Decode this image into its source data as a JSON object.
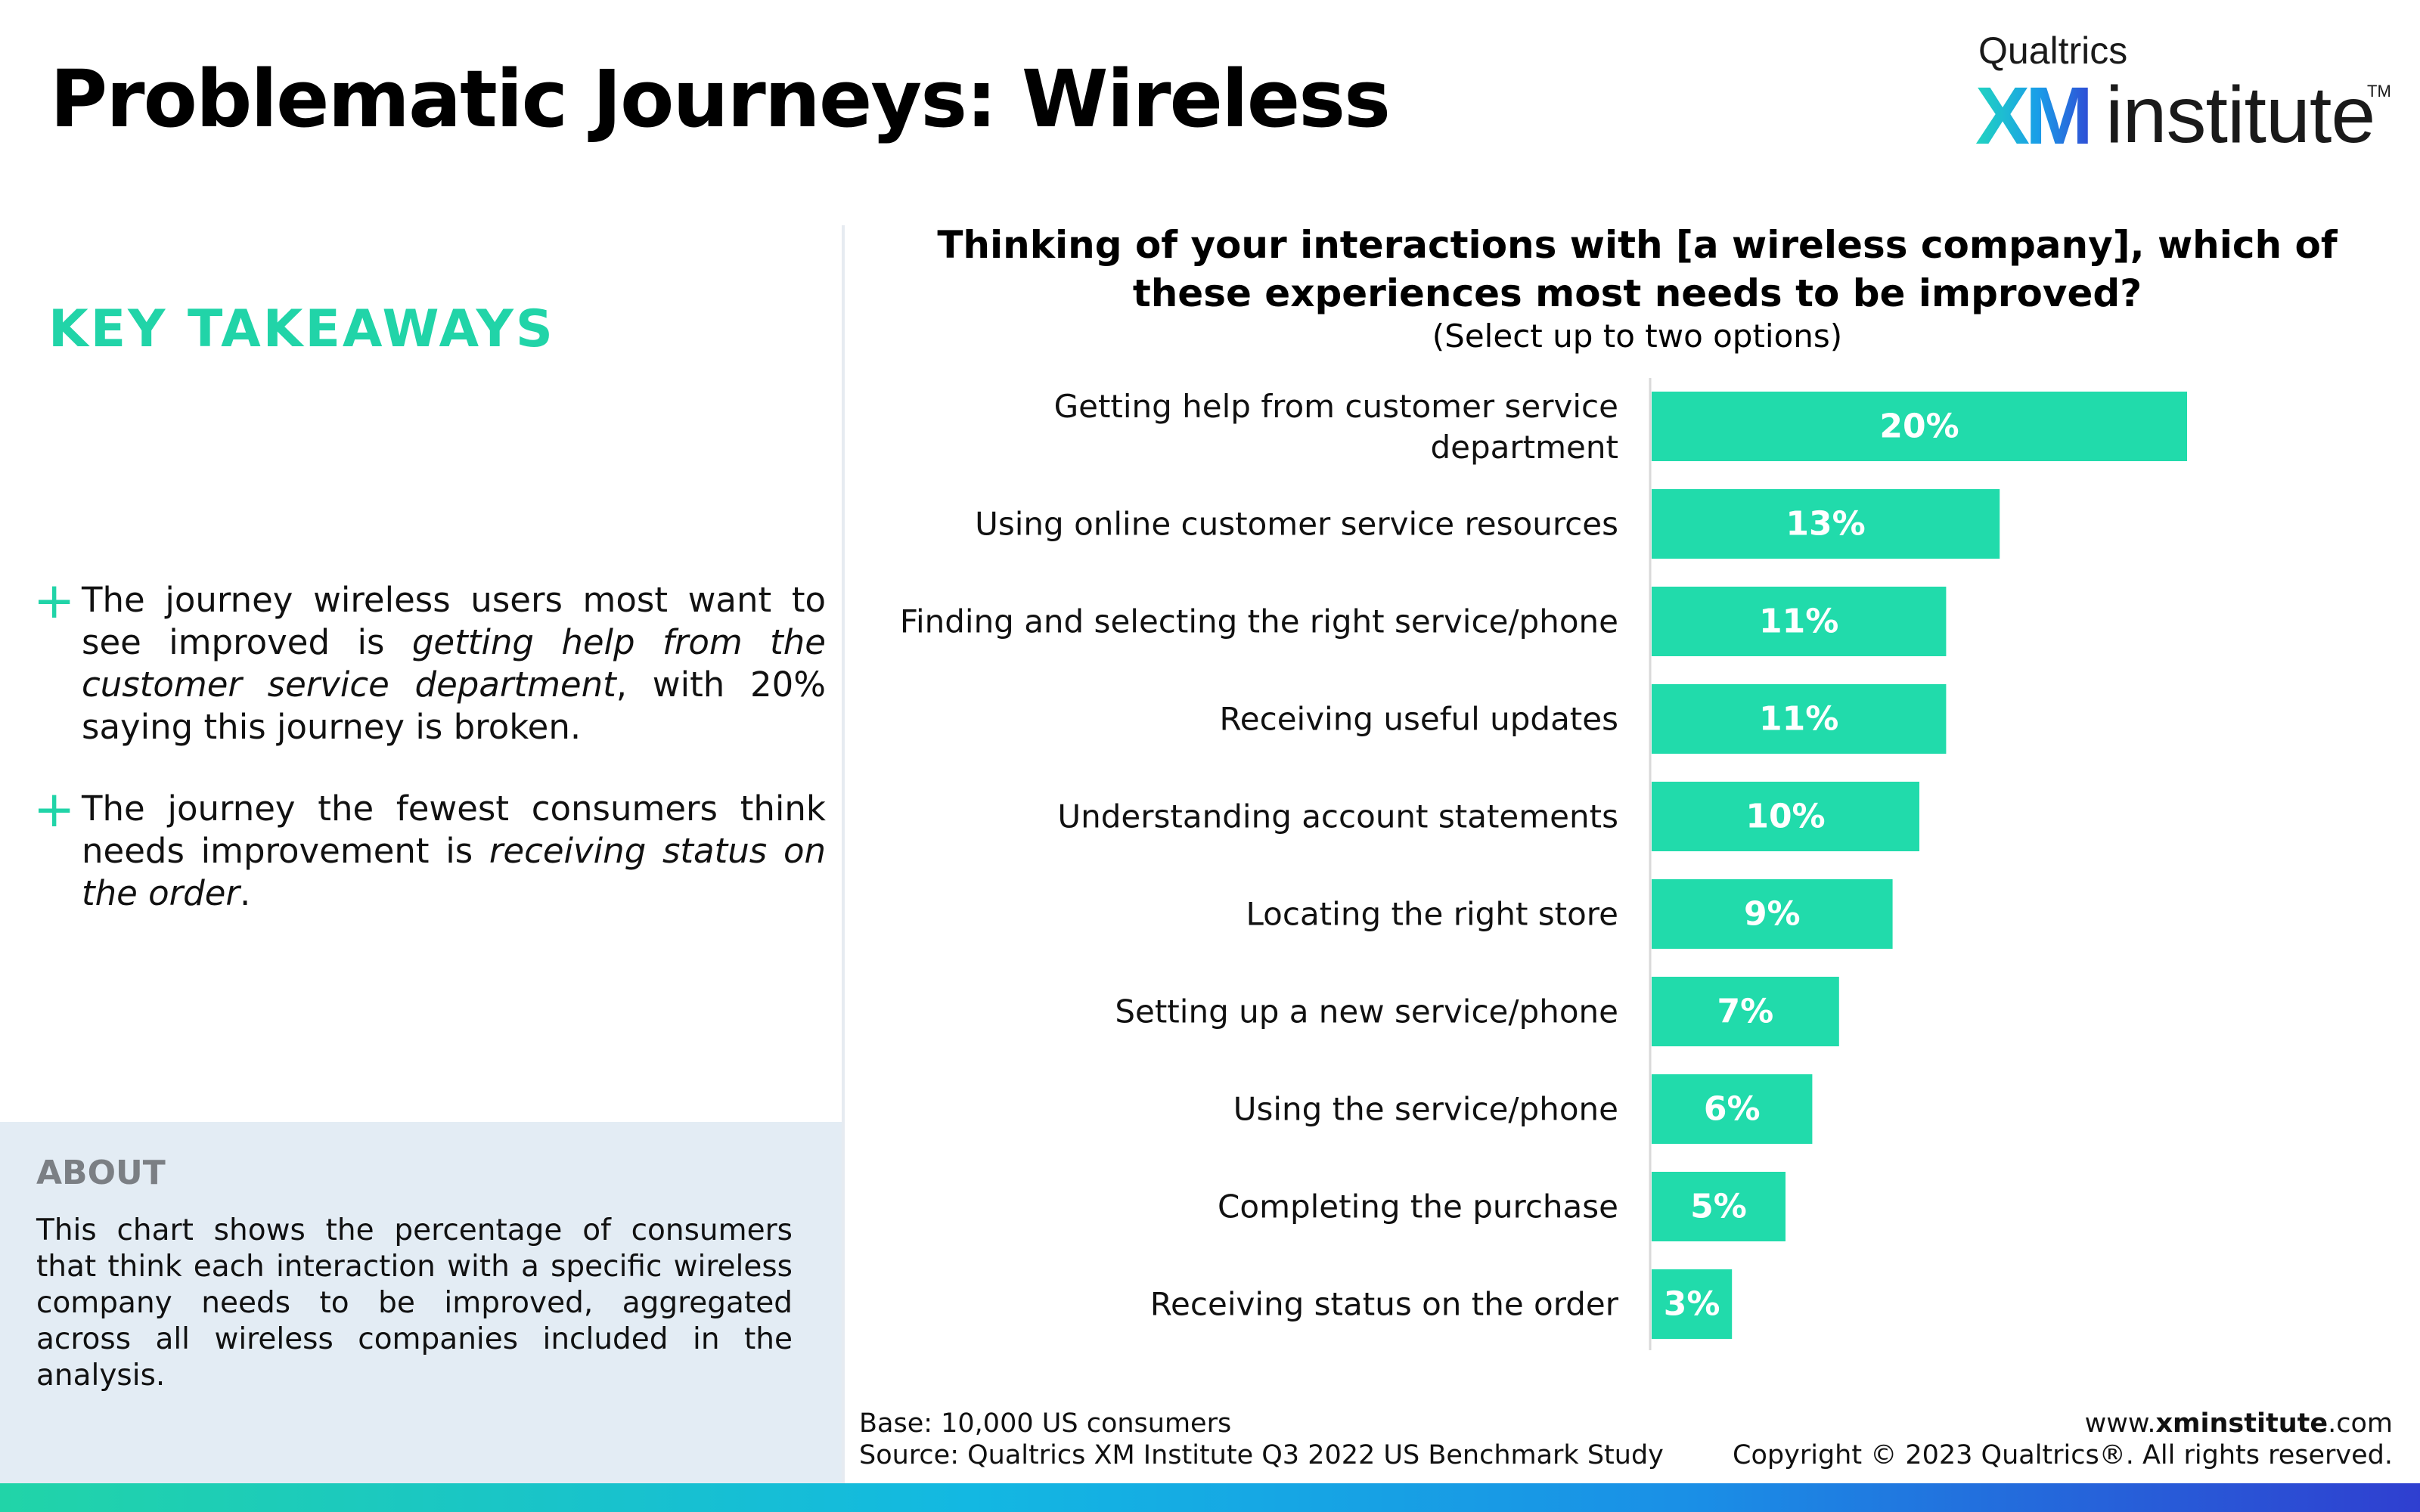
{
  "page": {
    "title": "Problematic Journeys: Wireless"
  },
  "logo": {
    "brand": "Qualtrics",
    "xm": "XM",
    "word": "institute",
    "tm": "TM"
  },
  "takeaways": {
    "heading": "KEY TAKEAWAYS",
    "items": [
      {
        "pre": "The journey wireless users most want to see improved is ",
        "em": "getting help from the customer service department",
        "post": ", with 20% saying this journey is broken."
      },
      {
        "pre": "The journey the fewest consumers think needs improvement is ",
        "em": "receiving status on the order",
        "post": "."
      }
    ]
  },
  "about": {
    "heading": "ABOUT",
    "text": "This chart shows the percentage of consumers that think each interaction with a specific wireless company needs to be improved, aggregated across all wireless companies included in the analysis."
  },
  "chart_data": {
    "type": "bar",
    "orientation": "horizontal",
    "title": "Thinking of your interactions with [a wireless company], which of these experiences most needs to be improved?",
    "subtitle": "(Select up to two options)",
    "categories": [
      "Getting help from customer service department",
      "Using online customer service resources",
      "Finding and selecting the right service/phone",
      "Receiving useful updates",
      "Understanding account statements",
      "Locating the right store",
      "Setting up a new service/phone",
      "Using the service/phone",
      "Completing the purchase",
      "Receiving status on the order"
    ],
    "values": [
      20,
      13,
      11,
      11,
      10,
      9,
      7,
      6,
      5,
      3
    ],
    "value_labels": [
      "20%",
      "13%",
      "11%",
      "11%",
      "10%",
      "9%",
      "7%",
      "6%",
      "5%",
      "3%"
    ],
    "unit": "%",
    "bar_color": "#21dbab",
    "grid": false,
    "legend": "none"
  },
  "footer": {
    "base": "Base: 10,000 US consumers",
    "source": "Source: Qualtrics XM Institute Q3 2022 US Benchmark Study",
    "url_pre": "www.",
    "url_bold": "xminstitute",
    "url_post": ".com",
    "copyright": "Copyright © 2023 Qualtrics®. All rights reserved."
  }
}
